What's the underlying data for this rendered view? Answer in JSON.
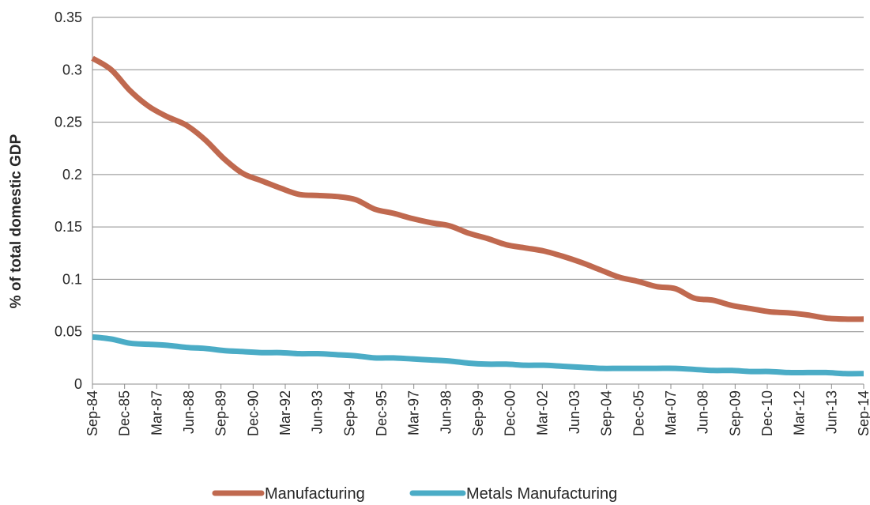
{
  "chart_data": {
    "type": "line",
    "title": "",
    "xlabel": "",
    "ylabel": "% of total domestic GDP",
    "ylim": [
      0,
      0.35
    ],
    "y_ticks": [
      "0",
      "0.05",
      "0.1",
      "0.15",
      "0.2",
      "0.25",
      "0.3",
      "0.35"
    ],
    "grid": true,
    "legend_position": "bottom",
    "x_tick_labels": [
      "Sep-84",
      "Dec-85",
      "Mar-87",
      "Jun-88",
      "Sep-89",
      "Dec-90",
      "Mar-92",
      "Jun-93",
      "Sep-94",
      "Dec-95",
      "Mar-97",
      "Jun-98",
      "Sep-99",
      "Dec-00",
      "Mar-02",
      "Jun-03",
      "Sep-04",
      "Dec-05",
      "Mar-07",
      "Jun-08",
      "Sep-09",
      "Dec-10",
      "Mar-12",
      "Jun-13",
      "Sep-14"
    ],
    "x": [
      "Sep-84",
      "Jun-85",
      "Mar-86",
      "Dec-86",
      "Sep-87",
      "Jun-88",
      "Mar-89",
      "Dec-89",
      "Sep-90",
      "Jun-91",
      "Mar-92",
      "Dec-92",
      "Sep-93",
      "Jun-94",
      "Mar-95",
      "Dec-95",
      "Sep-96",
      "Jun-97",
      "Mar-98",
      "Dec-98",
      "Sep-99",
      "Jun-00",
      "Mar-01",
      "Dec-01",
      "Sep-02",
      "Jun-03",
      "Mar-04",
      "Dec-04",
      "Sep-05",
      "Jun-06",
      "Mar-07",
      "Dec-07",
      "Sep-08",
      "Jun-09",
      "Mar-10",
      "Dec-10",
      "Sep-11",
      "Jun-12",
      "Mar-13",
      "Dec-13",
      "Sep-14",
      "Dec-14"
    ],
    "series": [
      {
        "name": "Manufacturing",
        "color": "#c0694f",
        "values": [
          0.311,
          0.3,
          0.28,
          0.265,
          0.255,
          0.247,
          0.233,
          0.215,
          0.201,
          0.194,
          0.187,
          0.181,
          0.18,
          0.179,
          0.176,
          0.167,
          0.163,
          0.158,
          0.154,
          0.151,
          0.144,
          0.139,
          0.133,
          0.13,
          0.127,
          0.122,
          0.116,
          0.109,
          0.102,
          0.098,
          0.093,
          0.091,
          0.082,
          0.08,
          0.075,
          0.072,
          0.069,
          0.068,
          0.066,
          0.063,
          0.062,
          0.062
        ]
      },
      {
        "name": "Metals Manufacturing",
        "color": "#4bacc6",
        "values": [
          0.045,
          0.043,
          0.039,
          0.038,
          0.037,
          0.035,
          0.034,
          0.032,
          0.031,
          0.03,
          0.03,
          0.029,
          0.029,
          0.028,
          0.027,
          0.025,
          0.025,
          0.024,
          0.023,
          0.022,
          0.02,
          0.019,
          0.019,
          0.018,
          0.018,
          0.017,
          0.016,
          0.015,
          0.015,
          0.015,
          0.015,
          0.015,
          0.014,
          0.013,
          0.013,
          0.012,
          0.012,
          0.011,
          0.011,
          0.011,
          0.01,
          0.01
        ]
      }
    ]
  }
}
